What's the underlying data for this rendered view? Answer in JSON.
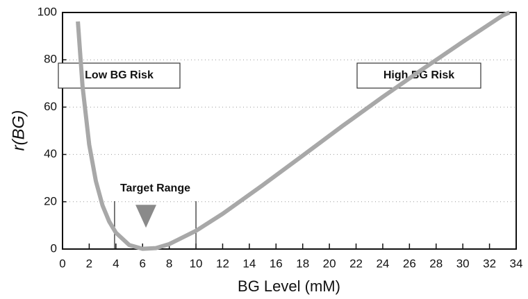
{
  "chart_data": {
    "type": "line",
    "xlabel": "BG Level (mM)",
    "ylabel": "r(BG)",
    "x": [
      1.15,
      1.5,
      2,
      2.5,
      3,
      3.5,
      4,
      5,
      6,
      7,
      8,
      10,
      12,
      15,
      18,
      21,
      24,
      27,
      30,
      33,
      33.5
    ],
    "series": [
      {
        "color": "#a8a8a8",
        "values": [
          96.2,
          68.8,
          44.1,
          28.7,
          18.4,
          11.6,
          6.9,
          1.7,
          0.1,
          0.4,
          2.1,
          7.7,
          14.9,
          27.0,
          39.5,
          52.1,
          64.3,
          76.1,
          87.6,
          98.8,
          100
        ]
      }
    ],
    "xlim": [
      0,
      34
    ],
    "ylim": [
      0,
      100
    ],
    "xticks": [
      0,
      2,
      4,
      6,
      8,
      10,
      12,
      14,
      16,
      18,
      20,
      22,
      24,
      26,
      28,
      30,
      32,
      34
    ],
    "yticks": [
      0,
      20,
      40,
      60,
      80,
      100
    ],
    "grid": true,
    "target_range": {
      "label": "Target Range",
      "lo": 3.9,
      "hi": 10
    },
    "target_marker": {
      "x": 6.25,
      "y": 9
    },
    "annotations": [
      "Low BG Risk",
      "High BG Risk"
    ]
  }
}
